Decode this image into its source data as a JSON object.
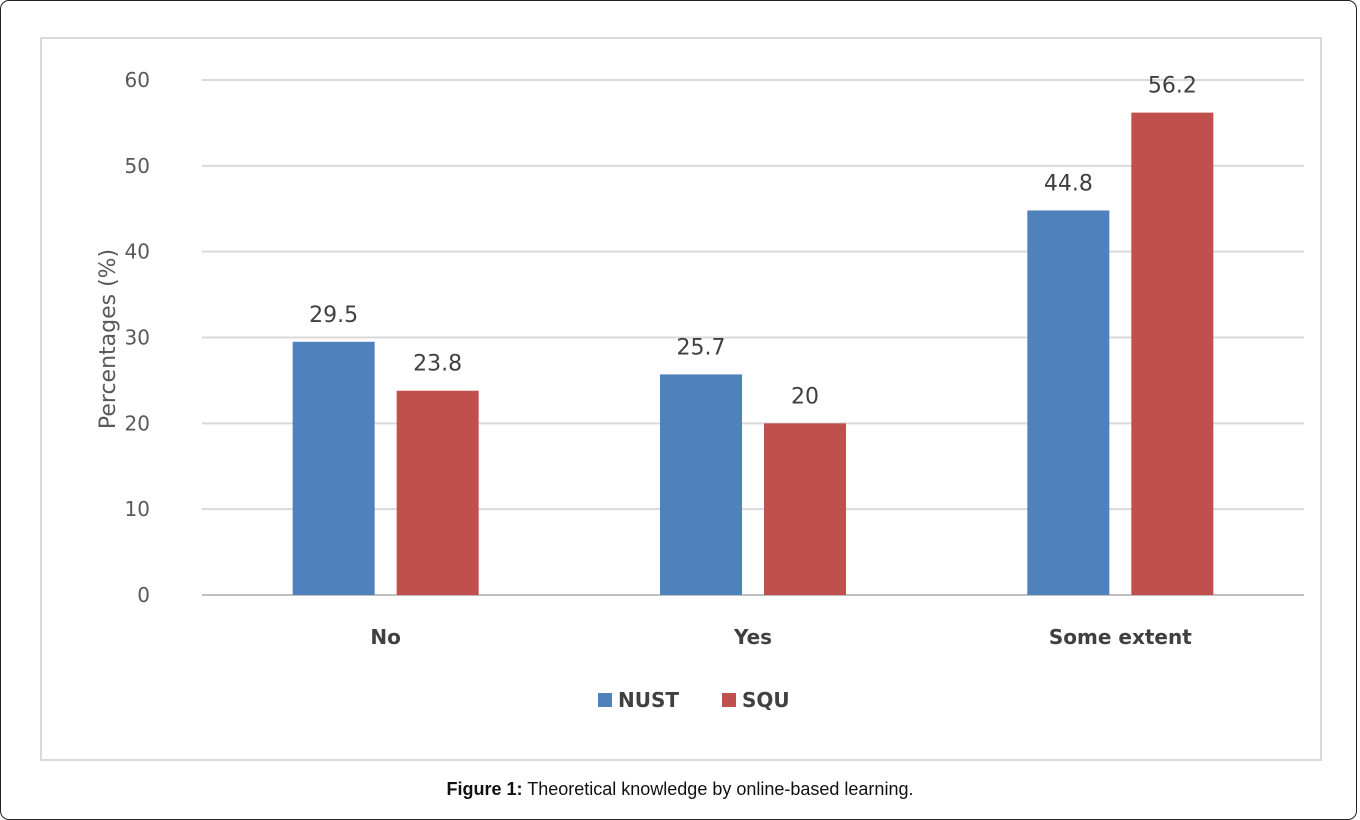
{
  "caption": {
    "label": "Figure 1:",
    "text": "Theoretical knowledge by online-based learning."
  },
  "chart_data": {
    "type": "bar",
    "categories": [
      "No",
      "Yes",
      "Some extent"
    ],
    "series": [
      {
        "name": "NUST",
        "values": [
          29.5,
          25.7,
          44.8
        ],
        "color": "#4f81bd"
      },
      {
        "name": "SQU",
        "values": [
          23.8,
          20,
          56.2
        ],
        "color": "#c0504d"
      }
    ],
    "data_labels": [
      [
        "29.5",
        "25.7",
        "44.8"
      ],
      [
        "23.8",
        "20",
        "56.2"
      ]
    ],
    "ylabel": "Percentages (%)",
    "xlabel": "",
    "ylim": [
      0,
      60
    ],
    "yticks": [
      0,
      10,
      20,
      30,
      40,
      50,
      60
    ],
    "grid": true,
    "legend_position": "bottom"
  }
}
